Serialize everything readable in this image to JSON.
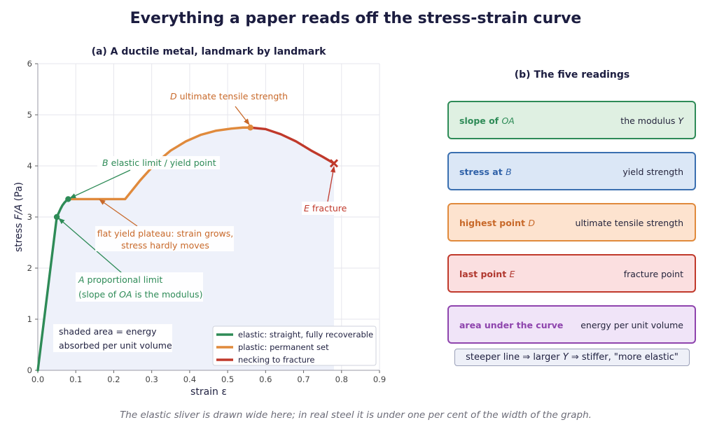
{
  "title": "Everything a paper reads off the stress-strain curve",
  "panel_a": {
    "title": "(a) A ductile metal, landmark by landmark",
    "annotations": {
      "A_symbol": "A",
      "A_label": "proportional limit",
      "A_note_pre": "(slope of",
      "A_note_sym": "OA",
      "A_note_post": "is the modulus)",
      "B_symbol": "B",
      "B_label": "elastic limit / yield point",
      "plateau_line1": "flat yield plateau: strain grows,",
      "plateau_line2": "stress hardly moves",
      "D_symbol": "D",
      "D_label": "ultimate tensile strength",
      "E_symbol": "E",
      "E_label": "fracture",
      "shaded_line1": "shaded area  =  energy",
      "shaded_line2": "absorbed per unit volume"
    }
  },
  "chart_data": {
    "type": "line",
    "xlabel": "strain  ε",
    "ylabel_pre": "stress",
    "ylabel_sym": "F/A",
    "ylabel_post": "(Pa)",
    "xlim": [
      0,
      0.9
    ],
    "ylim": [
      0,
      6
    ],
    "x_ticks": [
      "0.0",
      "0.1",
      "0.2",
      "0.3",
      "0.4",
      "0.5",
      "0.6",
      "0.7",
      "0.8",
      "0.9"
    ],
    "y_ticks": [
      "0",
      "1",
      "2",
      "3",
      "4",
      "5",
      "6"
    ],
    "grid": true,
    "legend_position": "bottom-right",
    "series": [
      {
        "name": "elastic: straight, fully recoverable",
        "color": "#2e8b57",
        "x": [
          0,
          0.05,
          0.055,
          0.06,
          0.065,
          0.07,
          0.075,
          0.08
        ],
        "y": [
          0,
          3.0,
          3.08,
          3.16,
          3.23,
          3.28,
          3.32,
          3.35
        ]
      },
      {
        "name": "plastic: permanent set",
        "color": "#e08a3c",
        "x": [
          0.08,
          0.23,
          0.27,
          0.31,
          0.35,
          0.39,
          0.43,
          0.47,
          0.51,
          0.54,
          0.56
        ],
        "y": [
          3.35,
          3.35,
          3.72,
          4.05,
          4.3,
          4.48,
          4.61,
          4.69,
          4.73,
          4.75,
          4.75
        ]
      },
      {
        "name": "necking to fracture",
        "color": "#c0392b",
        "x": [
          0.56,
          0.6,
          0.64,
          0.68,
          0.72,
          0.75,
          0.78
        ],
        "y": [
          4.75,
          4.72,
          4.62,
          4.48,
          4.3,
          4.18,
          4.05
        ]
      }
    ],
    "landmarks": [
      {
        "id": "A",
        "x": 0.05,
        "y": 3.0
      },
      {
        "id": "B",
        "x": 0.08,
        "y": 3.35
      },
      {
        "id": "D",
        "x": 0.56,
        "y": 4.75
      },
      {
        "id": "E",
        "x": 0.78,
        "y": 4.05
      }
    ]
  },
  "panel_b": {
    "title": "(b) The five readings",
    "readings": [
      {
        "key_text": "slope of ",
        "key_sym": "OA",
        "value_text": "the modulus ",
        "value_sym": "Y",
        "border": "#2e8b57",
        "fill": "#dff0e2",
        "key_color": "#2e8b57"
      },
      {
        "key_text": "stress at ",
        "key_sym": "B",
        "value_text": "yield strength",
        "value_sym": "",
        "border": "#3a6fb0",
        "fill": "#dbe7f6",
        "key_color": "#2f61a8"
      },
      {
        "key_text": "highest point ",
        "key_sym": "D",
        "value_text": "ultimate tensile strength",
        "value_sym": "",
        "border": "#e08a3c",
        "fill": "#fde3cf",
        "key_color": "#c8692a"
      },
      {
        "key_text": "last point ",
        "key_sym": "E",
        "value_text": "fracture point",
        "value_sym": "",
        "border": "#c0392b",
        "fill": "#fbdfe0",
        "key_color": "#b0372e"
      },
      {
        "key_text": "area under the curve",
        "key_sym": "",
        "value_text": "energy per unit volume",
        "value_sym": "",
        "border": "#8e44ad",
        "fill": "#f0e4f8",
        "key_color": "#8e44ad"
      }
    ],
    "tip": {
      "p1": "steeper line  ⇒  larger ",
      "sym": "Y",
      "p2": "  ⇒  stiffer, \"more elastic\""
    }
  },
  "footnote": "The elastic sliver is drawn wide here; in real steel it is under one per cent of the width of the graph."
}
